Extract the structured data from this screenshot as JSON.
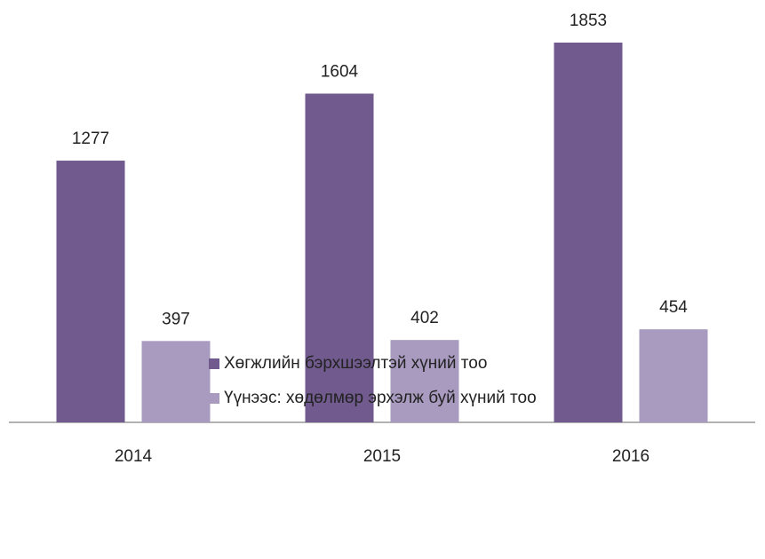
{
  "chart_data": {
    "type": "bar",
    "categories": [
      "2014",
      "2015",
      "2016"
    ],
    "series": [
      {
        "name": "Хөгжлийн бэрхшээлтэй хүний тоо",
        "color": "#705a8e",
        "values": [
          1277,
          1604,
          1853
        ]
      },
      {
        "name": "Үүнээс: хөдөлмөр эрхэлж буй хүний тоо",
        "color": "#a99bc0",
        "values": [
          397,
          402,
          454
        ]
      }
    ],
    "legend": "bottom"
  }
}
